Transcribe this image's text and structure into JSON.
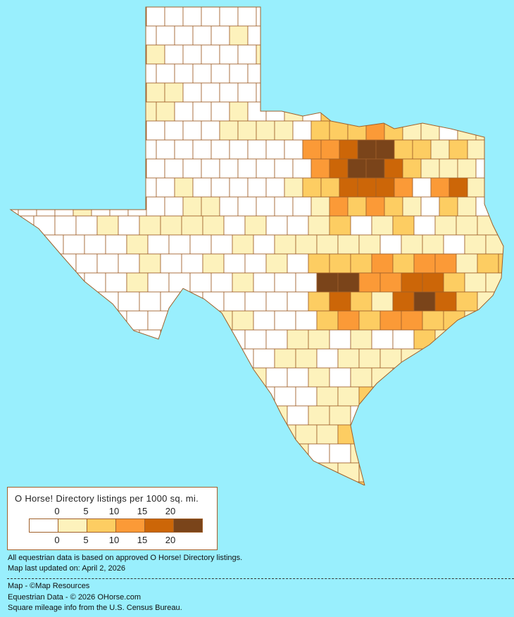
{
  "legend": {
    "title": "O Horse! Directory listings per 1000 sq. mi.",
    "ticks_top": [
      "0",
      "5",
      "10",
      "15",
      "20"
    ],
    "ticks_bottom": [
      "0",
      "5",
      "10",
      "15",
      "20"
    ],
    "bins": [
      {
        "range": "0",
        "color": "#ffffff"
      },
      {
        "range": "0-5",
        "color": "#fdf2bc"
      },
      {
        "range": "5-10",
        "color": "#fdcd62"
      },
      {
        "range": "10-15",
        "color": "#fb9a37"
      },
      {
        "range": "15-20",
        "color": "#cc6608"
      },
      {
        "range": "20+",
        "color": "#7a441a"
      }
    ]
  },
  "notes": {
    "data_source": "All equestrian data is based on approved O Horse! Directory listings.",
    "updated": "Map last updated on: April 2, 2026",
    "map_credit": "Map - ©Map Resources",
    "data_credit": "Equestrian Data - © 2026 OHorse.com",
    "census_credit": "Square mileage info from the U.S. Census Bureau."
  },
  "colors": {
    "background": "#99effd",
    "border": "#a0602a"
  }
}
